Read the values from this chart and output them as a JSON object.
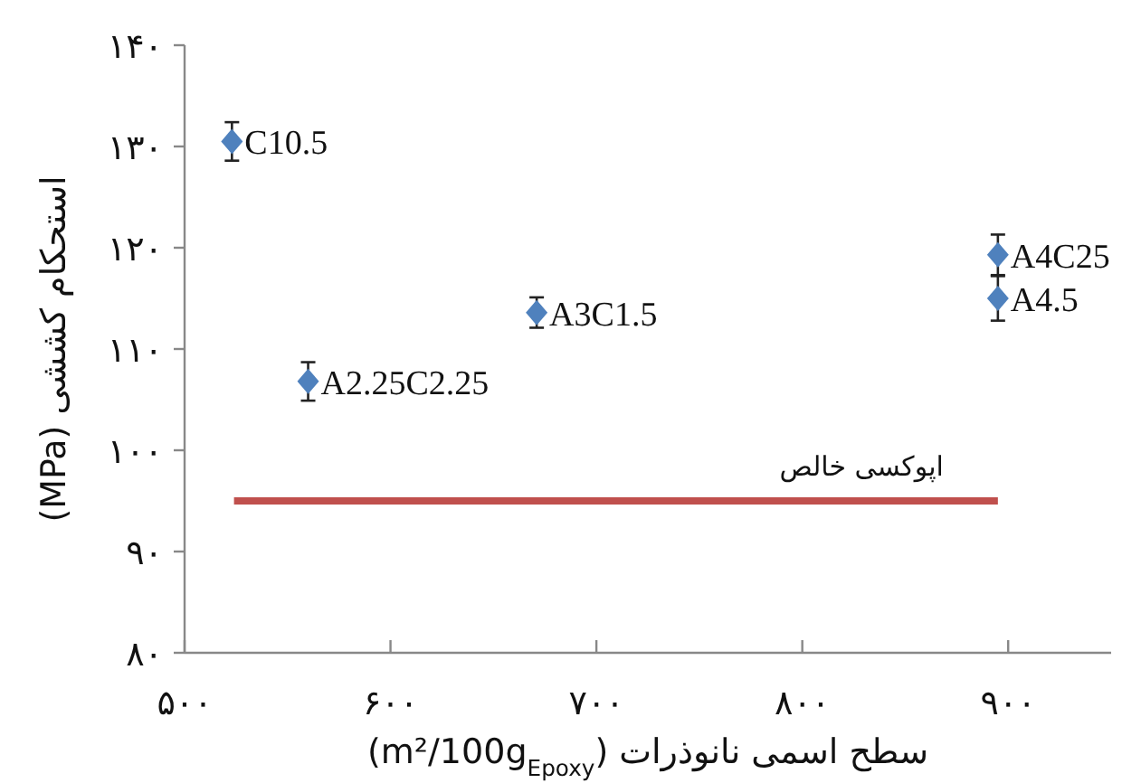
{
  "chart_data": {
    "type": "scatter",
    "xlabel": "سطح اسمی نانوذرات (m²/100g$_{Epoxy}$)",
    "ylabel": "استحکام کششی (MPa)",
    "xlim": [
      500,
      950
    ],
    "ylim": [
      80,
      140
    ],
    "xticks": [
      {
        "value": 500,
        "label": "۵۰۰"
      },
      {
        "value": 600,
        "label": "۶۰۰"
      },
      {
        "value": 700,
        "label": "۷۰۰"
      },
      {
        "value": 800,
        "label": "۸۰۰"
      },
      {
        "value": 900,
        "label": "۹۰۰"
      }
    ],
    "yticks": [
      {
        "value": 80,
        "label": "۸۰"
      },
      {
        "value": 90,
        "label": "۹۰"
      },
      {
        "value": 100,
        "label": "۱۰۰"
      },
      {
        "value": 110,
        "label": "۱۱۰"
      },
      {
        "value": 120,
        "label": "۱۲۰"
      },
      {
        "value": 130,
        "label": "۱۳۰"
      },
      {
        "value": 140,
        "label": "۱۴۰"
      }
    ],
    "series": [
      {
        "marker": "diamond",
        "color": "#4f81bd",
        "x": [
          523,
          560,
          671,
          895,
          895
        ],
        "values": [
          130.5,
          106.8,
          113.6,
          119.3,
          115.0
        ],
        "errors": [
          1.9,
          1.9,
          1.5,
          2.0,
          2.2
        ]
      },
      {
        "type": "line",
        "marker": "none",
        "name": "اپوکسی خالص",
        "color": "#c0504d",
        "x": [
          524,
          895
        ],
        "values": [
          95,
          95
        ]
      }
    ],
    "annotations": [
      {
        "text": "C10.5",
        "x": 523,
        "y": 130.5
      },
      {
        "text": "A2.25C2.25",
        "x": 560,
        "y": 106.8
      },
      {
        "text": "A3C1.5",
        "x": 671,
        "y": 113.6
      },
      {
        "text": "A4C25",
        "x": 895,
        "y": 119.3
      },
      {
        "text": "A4.5",
        "x": 895,
        "y": 115.0
      }
    ]
  }
}
